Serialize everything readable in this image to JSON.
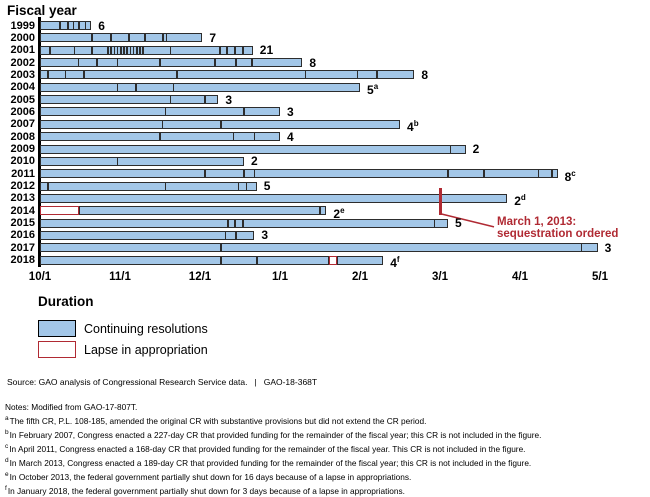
{
  "page_title": "Fiscal year",
  "chart_data": {
    "type": "bar",
    "subtype": "horizontal-timeline-gantt",
    "title": "Fiscal year",
    "xlabel": "Duration",
    "x_unit": "months after Oct 1 (0 = 10/1, 7 = 5/1)",
    "x_range": [
      0,
      7
    ],
    "grid": false,
    "x_ticks": [
      {
        "label": "10/1",
        "v": 0
      },
      {
        "label": "11/1",
        "v": 1
      },
      {
        "label": "12/1",
        "v": 2
      },
      {
        "label": "1/1",
        "v": 3
      },
      {
        "label": "2/1",
        "v": 4
      },
      {
        "label": "3/1",
        "v": 5
      },
      {
        "label": "4/1",
        "v": 6
      },
      {
        "label": "5/1",
        "v": 7
      }
    ],
    "rows": [
      {
        "year": "1999",
        "count": "6",
        "sup": "",
        "end": 0.64,
        "segments": [
          {
            "s": 0,
            "e": 0.64,
            "t": "cr"
          }
        ],
        "dividers": [
          0.25,
          0.35,
          0.42,
          0.49,
          0.57
        ]
      },
      {
        "year": "2000",
        "count": "7",
        "sup": "",
        "end": 2.03,
        "segments": [
          {
            "s": 0,
            "e": 2.03,
            "t": "cr"
          }
        ],
        "dividers": [
          0.65,
          0.89,
          1.11,
          1.31,
          1.54,
          1.58
        ]
      },
      {
        "year": "2001",
        "count": "21",
        "sup": "",
        "end": 2.66,
        "segments": [
          {
            "s": 0,
            "e": 2.66,
            "t": "cr"
          }
        ],
        "dividers": [
          0.125,
          0.43,
          0.65,
          0.85,
          0.89,
          0.93,
          0.97,
          1.01,
          1.05,
          1.09,
          1.13,
          1.17,
          1.21,
          1.25,
          1.29,
          1.63,
          2.25,
          2.34,
          2.44,
          2.54
        ]
      },
      {
        "year": "2002",
        "count": "8",
        "sup": "",
        "end": 3.28,
        "segments": [
          {
            "s": 0,
            "e": 3.28,
            "t": "cr"
          }
        ],
        "dividers": [
          0.48,
          0.71,
          0.97,
          1.5,
          2.19,
          2.45,
          2.65
        ]
      },
      {
        "year": "2003",
        "count": "8",
        "sup": "",
        "end": 4.68,
        "segments": [
          {
            "s": 0,
            "e": 4.68,
            "t": "cr"
          }
        ],
        "dividers": [
          0.1,
          0.32,
          0.55,
          1.71,
          3.32,
          3.97,
          4.21
        ]
      },
      {
        "year": "2004",
        "count": "5",
        "sup": "a",
        "end": 4.0,
        "segments": [
          {
            "s": 0,
            "e": 4.0,
            "t": "cr"
          }
        ],
        "dividers": [
          0.97,
          1.2,
          1.67
        ]
      },
      {
        "year": "2005",
        "count": "3",
        "sup": "",
        "end": 2.23,
        "segments": [
          {
            "s": 0,
            "e": 2.23,
            "t": "cr"
          }
        ],
        "dividers": [
          1.63,
          2.06
        ]
      },
      {
        "year": "2006",
        "count": "3",
        "sup": "",
        "end": 3.0,
        "segments": [
          {
            "s": 0,
            "e": 3.0,
            "t": "cr"
          }
        ],
        "dividers": [
          1.57,
          2.55
        ]
      },
      {
        "year": "2007",
        "count": "4",
        "sup": "b",
        "end": 4.5,
        "segments": [
          {
            "s": 0,
            "e": 4.5,
            "t": "cr"
          }
        ],
        "dividers": [
          1.53,
          2.26
        ]
      },
      {
        "year": "2008",
        "count": "4",
        "sup": "",
        "end": 3.0,
        "segments": [
          {
            "s": 0,
            "e": 3.0,
            "t": "cr"
          }
        ],
        "dividers": [
          1.5,
          2.42,
          2.68
        ]
      },
      {
        "year": "2009",
        "count": "2",
        "sup": "",
        "end": 5.32,
        "segments": [
          {
            "s": 0,
            "e": 5.32,
            "t": "cr"
          }
        ],
        "dividers": [
          5.13
        ]
      },
      {
        "year": "2010",
        "count": "2",
        "sup": "",
        "end": 2.55,
        "segments": [
          {
            "s": 0,
            "e": 2.55,
            "t": "cr"
          }
        ],
        "dividers": [
          0.97
        ]
      },
      {
        "year": "2011",
        "count": "8",
        "sup": "c",
        "end": 6.47,
        "segments": [
          {
            "s": 0,
            "e": 6.47,
            "t": "cr"
          }
        ],
        "dividers": [
          2.06,
          2.55,
          2.68,
          5.1,
          5.55,
          6.23,
          6.4
        ]
      },
      {
        "year": "2012",
        "count": "5",
        "sup": "",
        "end": 2.71,
        "segments": [
          {
            "s": 0,
            "e": 2.71,
            "t": "cr"
          }
        ],
        "dividers": [
          0.1,
          1.57,
          2.48,
          2.58
        ]
      },
      {
        "year": "2013",
        "count": "2",
        "sup": "d",
        "end": 5.84,
        "segments": [
          {
            "s": 0,
            "e": 5.84,
            "t": "cr"
          }
        ],
        "dividers": []
      },
      {
        "year": "2014",
        "count": "2",
        "sup": "e",
        "end": 3.58,
        "segments": [
          {
            "s": 0,
            "e": 0.49,
            "t": "lapse"
          },
          {
            "s": 0.49,
            "e": 3.58,
            "t": "cr"
          }
        ],
        "dividers": [
          3.5
        ]
      },
      {
        "year": "2015",
        "count": "5",
        "sup": "",
        "end": 5.1,
        "segments": [
          {
            "s": 0,
            "e": 5.1,
            "t": "cr"
          }
        ],
        "dividers": [
          2.35,
          2.44,
          2.54,
          4.93
        ]
      },
      {
        "year": "2016",
        "count": "3",
        "sup": "",
        "end": 2.68,
        "segments": [
          {
            "s": 0,
            "e": 2.68,
            "t": "cr"
          }
        ],
        "dividers": [
          2.32,
          2.45
        ]
      },
      {
        "year": "2017",
        "count": "3",
        "sup": "",
        "end": 6.97,
        "segments": [
          {
            "s": 0,
            "e": 6.97,
            "t": "cr"
          }
        ],
        "dividers": [
          2.26,
          6.77
        ]
      },
      {
        "year": "2018",
        "count": "4",
        "sup": "f",
        "end": 4.29,
        "segments": [
          {
            "s": 0,
            "e": 3.61,
            "t": "cr"
          },
          {
            "s": 3.61,
            "e": 3.71,
            "t": "lapse"
          },
          {
            "s": 3.71,
            "e": 4.29,
            "t": "cr"
          }
        ],
        "dividers": [
          2.26,
          2.71
        ]
      }
    ],
    "annotation": {
      "line1": "March 1, 2013:",
      "line2": "sequestration ordered",
      "x_value": 5.0,
      "row_year": "2013"
    }
  },
  "legend": {
    "title": "Duration",
    "items": [
      {
        "key": "cr",
        "label": "Continuing resolutions"
      },
      {
        "key": "lapse",
        "label": "Lapse in appropriation"
      }
    ]
  },
  "source": {
    "text": "Source: GAO analysis of Congressional Research Service data.",
    "separator": "|",
    "report_id": "GAO-18-368T"
  },
  "notes": {
    "header": "Notes: Modified from GAO-17-807T.",
    "items": [
      {
        "sup": "a",
        "text": "The fifth CR, P.L. 108-185, amended the original CR with substantive provisions but did not extend the CR period."
      },
      {
        "sup": "b",
        "text": "In February 2007, Congress enacted a 227-day CR that provided funding for the remainder of the fiscal year; this CR is not included in the figure."
      },
      {
        "sup": "c",
        "text": "In April 2011, Congress enacted a 168-day CR that provided funding for the remainder of the fiscal year. This CR is not included in the figure."
      },
      {
        "sup": "d",
        "text": "In March 2013, Congress enacted a 189-day CR that provided funding for the remainder of the fiscal year; this CR is not included in the figure."
      },
      {
        "sup": "e",
        "text": "In October 2013, the federal government partially shut down for 16 days because of a lapse in appropriations."
      },
      {
        "sup": "f",
        "text": "In January 2018, the federal government partially shut down for 3 days because of a lapse in appropriations."
      }
    ]
  },
  "colors": {
    "bar_fill": "#a3c7e8",
    "bar_border": "#2d2d2d",
    "lapse_and_annotation_red": "#b02a33"
  }
}
